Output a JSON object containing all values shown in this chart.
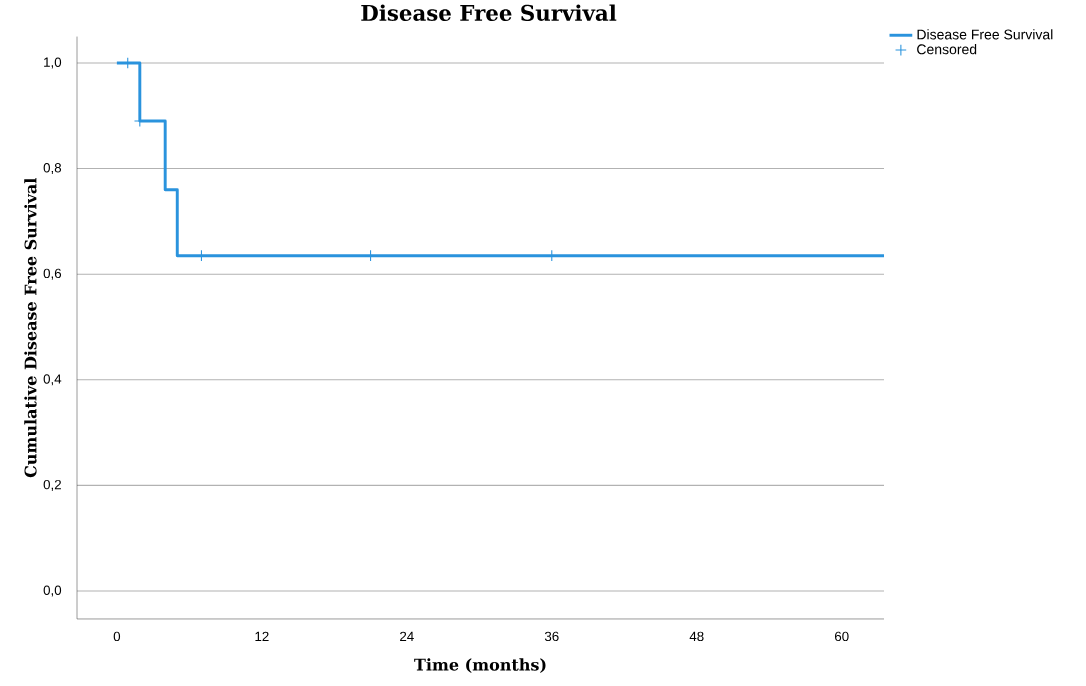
{
  "chart_data": {
    "type": "step",
    "title": "Disease Free Survival",
    "xlabel": "Time (months)",
    "ylabel": "Cumulative Disease Free Survival",
    "xlim": [
      -3.3,
      63.5
    ],
    "ylim": [
      -0.053,
      1.05
    ],
    "xticks": [
      0,
      12,
      24,
      36,
      48,
      60
    ],
    "yticks": [
      {
        "value": 0,
        "label": "0,0"
      },
      {
        "value": 0.2,
        "label": "0,2"
      },
      {
        "value": 0.4,
        "label": "0,4"
      },
      {
        "value": 0.6,
        "label": "0,6"
      },
      {
        "value": 0.8,
        "label": "0,8"
      },
      {
        "value": 1,
        "label": "1,0"
      }
    ],
    "grid": "y",
    "legend": "top right",
    "series": [
      {
        "name": "Disease Free Survival",
        "type": "step",
        "color": "#2a93dd",
        "x": [
          0,
          1.9,
          4,
          5,
          63.5
        ],
        "values": [
          1,
          0.89,
          0.76,
          0.635,
          0.635
        ]
      },
      {
        "name": "Censored",
        "type": "scatter",
        "marker": "cross",
        "color": "#2a93dd",
        "x": [
          0.9,
          1.9,
          7,
          21,
          36
        ],
        "values": [
          1,
          0.89,
          0.635,
          0.635,
          0.635
        ]
      }
    ]
  }
}
